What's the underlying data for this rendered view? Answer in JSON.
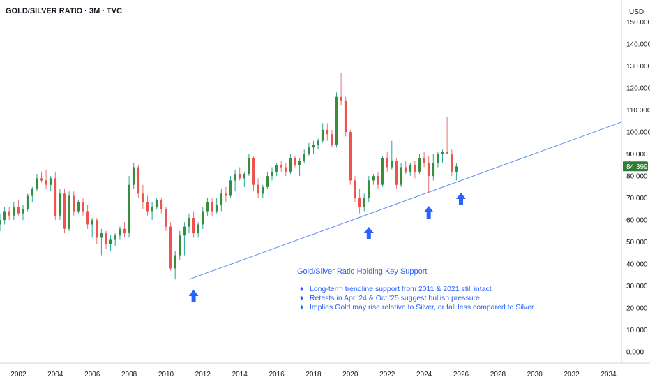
{
  "chart_data": {
    "type": "candlestick",
    "title": "GOLD/SILVER RATIO · 3M · TVC",
    "currency": "USD",
    "last_price": "84.399",
    "ylim": [
      -5,
      160
    ],
    "xlim": [
      2001.0,
      2034.7
    ],
    "y_ticks": [
      "0.000",
      "10.000",
      "20.000",
      "30.000",
      "40.000",
      "50.000",
      "60.000",
      "70.000",
      "80.000",
      "90.000",
      "100.000",
      "110.000",
      "120.000",
      "130.000",
      "140.000",
      "150.000"
    ],
    "y_tick_values": [
      0,
      10,
      20,
      30,
      40,
      50,
      60,
      70,
      80,
      90,
      100,
      110,
      120,
      130,
      140,
      150
    ],
    "x_ticks": [
      "2002",
      "2004",
      "2006",
      "2008",
      "2010",
      "2012",
      "2014",
      "2016",
      "2018",
      "2020",
      "2022",
      "2024",
      "2026",
      "2028",
      "2030",
      "2032",
      "2034"
    ],
    "x_tick_values": [
      2002,
      2004,
      2006,
      2008,
      2010,
      2012,
      2014,
      2016,
      2018,
      2020,
      2022,
      2024,
      2026,
      2028,
      2030,
      2032,
      2034
    ],
    "grid": false,
    "colors": {
      "up": "#26a69a",
      "up_body": "#388e3c",
      "down": "#ef5350",
      "trendline": "#5b8def",
      "arrow": "#2962ff",
      "price_tag": "#2e7d32",
      "text": "#131722",
      "axis": "#d1d4dc"
    },
    "candles": [
      {
        "t": 2001.0,
        "o": 58,
        "h": 63,
        "l": 55,
        "c": 60
      },
      {
        "t": 2001.25,
        "o": 60,
        "h": 66,
        "l": 58,
        "c": 64
      },
      {
        "t": 2001.5,
        "o": 64,
        "h": 66,
        "l": 60,
        "c": 62
      },
      {
        "t": 2001.75,
        "o": 62,
        "h": 68,
        "l": 60,
        "c": 66
      },
      {
        "t": 2002.0,
        "o": 66,
        "h": 69,
        "l": 62,
        "c": 63
      },
      {
        "t": 2002.25,
        "o": 63,
        "h": 67,
        "l": 60,
        "c": 65
      },
      {
        "t": 2002.5,
        "o": 65,
        "h": 72,
        "l": 64,
        "c": 71
      },
      {
        "t": 2002.75,
        "o": 71,
        "h": 75,
        "l": 68,
        "c": 74
      },
      {
        "t": 2003.0,
        "o": 74,
        "h": 81,
        "l": 73,
        "c": 79
      },
      {
        "t": 2003.25,
        "o": 79,
        "h": 82,
        "l": 77,
        "c": 78
      },
      {
        "t": 2003.5,
        "o": 78,
        "h": 83,
        "l": 74,
        "c": 76
      },
      {
        "t": 2003.75,
        "o": 76,
        "h": 80,
        "l": 73,
        "c": 79
      },
      {
        "t": 2004.0,
        "o": 79,
        "h": 82,
        "l": 60,
        "c": 62
      },
      {
        "t": 2004.25,
        "o": 62,
        "h": 74,
        "l": 60,
        "c": 72
      },
      {
        "t": 2004.5,
        "o": 72,
        "h": 74,
        "l": 54,
        "c": 56
      },
      {
        "t": 2004.75,
        "o": 56,
        "h": 73,
        "l": 55,
        "c": 71
      },
      {
        "t": 2005.0,
        "o": 71,
        "h": 73,
        "l": 62,
        "c": 64
      },
      {
        "t": 2005.25,
        "o": 64,
        "h": 69,
        "l": 63,
        "c": 68
      },
      {
        "t": 2005.5,
        "o": 68,
        "h": 70,
        "l": 62,
        "c": 64
      },
      {
        "t": 2005.75,
        "o": 64,
        "h": 67,
        "l": 56,
        "c": 58
      },
      {
        "t": 2006.0,
        "o": 58,
        "h": 61,
        "l": 52,
        "c": 60
      },
      {
        "t": 2006.25,
        "o": 60,
        "h": 61,
        "l": 49,
        "c": 52
      },
      {
        "t": 2006.5,
        "o": 52,
        "h": 56,
        "l": 44,
        "c": 54
      },
      {
        "t": 2006.75,
        "o": 54,
        "h": 55,
        "l": 47,
        "c": 49
      },
      {
        "t": 2007.0,
        "o": 49,
        "h": 53,
        "l": 46,
        "c": 51
      },
      {
        "t": 2007.25,
        "o": 51,
        "h": 54,
        "l": 48,
        "c": 53
      },
      {
        "t": 2007.5,
        "o": 53,
        "h": 57,
        "l": 51,
        "c": 56
      },
      {
        "t": 2007.75,
        "o": 56,
        "h": 59,
        "l": 52,
        "c": 54
      },
      {
        "t": 2008.0,
        "o": 54,
        "h": 80,
        "l": 52,
        "c": 76
      },
      {
        "t": 2008.25,
        "o": 76,
        "h": 86,
        "l": 74,
        "c": 84
      },
      {
        "t": 2008.5,
        "o": 84,
        "h": 85,
        "l": 70,
        "c": 72
      },
      {
        "t": 2008.75,
        "o": 72,
        "h": 76,
        "l": 65,
        "c": 68
      },
      {
        "t": 2009.0,
        "o": 68,
        "h": 71,
        "l": 62,
        "c": 64
      },
      {
        "t": 2009.25,
        "o": 64,
        "h": 68,
        "l": 60,
        "c": 66
      },
      {
        "t": 2009.5,
        "o": 66,
        "h": 70,
        "l": 65,
        "c": 69
      },
      {
        "t": 2009.75,
        "o": 69,
        "h": 70,
        "l": 63,
        "c": 65
      },
      {
        "t": 2010.0,
        "o": 65,
        "h": 66,
        "l": 55,
        "c": 57
      },
      {
        "t": 2010.25,
        "o": 57,
        "h": 59,
        "l": 37,
        "c": 38
      },
      {
        "t": 2010.5,
        "o": 38,
        "h": 46,
        "l": 33,
        "c": 44
      },
      {
        "t": 2010.75,
        "o": 44,
        "h": 55,
        "l": 42,
        "c": 53
      },
      {
        "t": 2011.0,
        "o": 53,
        "h": 59,
        "l": 44,
        "c": 57
      },
      {
        "t": 2011.25,
        "o": 57,
        "h": 63,
        "l": 54,
        "c": 61
      },
      {
        "t": 2011.5,
        "o": 61,
        "h": 64,
        "l": 52,
        "c": 54
      },
      {
        "t": 2011.75,
        "o": 54,
        "h": 59,
        "l": 52,
        "c": 58
      },
      {
        "t": 2012.0,
        "o": 58,
        "h": 66,
        "l": 56,
        "c": 64
      },
      {
        "t": 2012.25,
        "o": 64,
        "h": 70,
        "l": 62,
        "c": 68
      },
      {
        "t": 2012.5,
        "o": 68,
        "h": 70,
        "l": 62,
        "c": 64
      },
      {
        "t": 2012.75,
        "o": 64,
        "h": 70,
        "l": 63,
        "c": 67
      },
      {
        "t": 2013.0,
        "o": 67,
        "h": 74,
        "l": 64,
        "c": 72
      },
      {
        "t": 2013.25,
        "o": 72,
        "h": 75,
        "l": 68,
        "c": 71
      },
      {
        "t": 2013.5,
        "o": 71,
        "h": 80,
        "l": 70,
        "c": 78
      },
      {
        "t": 2013.75,
        "o": 78,
        "h": 83,
        "l": 73,
        "c": 81
      },
      {
        "t": 2014.0,
        "o": 81,
        "h": 84,
        "l": 78,
        "c": 79
      },
      {
        "t": 2014.25,
        "o": 79,
        "h": 82,
        "l": 75,
        "c": 81
      },
      {
        "t": 2014.5,
        "o": 81,
        "h": 90,
        "l": 80,
        "c": 88
      },
      {
        "t": 2014.75,
        "o": 88,
        "h": 89,
        "l": 73,
        "c": 76
      },
      {
        "t": 2015.0,
        "o": 76,
        "h": 79,
        "l": 70,
        "c": 72
      },
      {
        "t": 2015.25,
        "o": 72,
        "h": 76,
        "l": 70,
        "c": 75
      },
      {
        "t": 2015.5,
        "o": 75,
        "h": 82,
        "l": 74,
        "c": 80
      },
      {
        "t": 2015.75,
        "o": 80,
        "h": 84,
        "l": 78,
        "c": 82
      },
      {
        "t": 2016.0,
        "o": 82,
        "h": 86,
        "l": 80,
        "c": 85
      },
      {
        "t": 2016.25,
        "o": 85,
        "h": 87,
        "l": 82,
        "c": 84
      },
      {
        "t": 2016.5,
        "o": 84,
        "h": 86,
        "l": 80,
        "c": 82
      },
      {
        "t": 2016.75,
        "o": 82,
        "h": 90,
        "l": 81,
        "c": 88
      },
      {
        "t": 2017.0,
        "o": 88,
        "h": 89,
        "l": 84,
        "c": 85
      },
      {
        "t": 2017.25,
        "o": 85,
        "h": 88,
        "l": 80,
        "c": 87
      },
      {
        "t": 2017.5,
        "o": 87,
        "h": 92,
        "l": 86,
        "c": 90
      },
      {
        "t": 2017.75,
        "o": 90,
        "h": 95,
        "l": 89,
        "c": 93
      },
      {
        "t": 2018.0,
        "o": 93,
        "h": 96,
        "l": 90,
        "c": 94
      },
      {
        "t": 2018.25,
        "o": 94,
        "h": 97,
        "l": 92,
        "c": 96
      },
      {
        "t": 2018.5,
        "o": 96,
        "h": 104,
        "l": 95,
        "c": 101
      },
      {
        "t": 2018.75,
        "o": 101,
        "h": 104,
        "l": 96,
        "c": 99
      },
      {
        "t": 2019.0,
        "o": 99,
        "h": 101,
        "l": 93,
        "c": 94
      },
      {
        "t": 2019.25,
        "o": 94,
        "h": 118,
        "l": 93,
        "c": 116
      },
      {
        "t": 2019.5,
        "o": 116,
        "h": 127,
        "l": 112,
        "c": 114
      },
      {
        "t": 2019.75,
        "o": 114,
        "h": 116,
        "l": 98,
        "c": 100
      },
      {
        "t": 2020.0,
        "o": 100,
        "h": 101,
        "l": 76,
        "c": 78
      },
      {
        "t": 2020.25,
        "o": 78,
        "h": 80,
        "l": 68,
        "c": 70
      },
      {
        "t": 2020.5,
        "o": 70,
        "h": 74,
        "l": 63,
        "c": 66
      },
      {
        "t": 2020.75,
        "o": 66,
        "h": 72,
        "l": 64,
        "c": 70
      },
      {
        "t": 2021.0,
        "o": 70,
        "h": 80,
        "l": 68,
        "c": 78
      },
      {
        "t": 2021.25,
        "o": 78,
        "h": 81,
        "l": 76,
        "c": 80
      },
      {
        "t": 2021.5,
        "o": 80,
        "h": 82,
        "l": 74,
        "c": 76
      },
      {
        "t": 2021.75,
        "o": 76,
        "h": 89,
        "l": 75,
        "c": 88
      },
      {
        "t": 2022.0,
        "o": 88,
        "h": 91,
        "l": 82,
        "c": 84
      },
      {
        "t": 2022.25,
        "o": 84,
        "h": 96,
        "l": 83,
        "c": 87
      },
      {
        "t": 2022.5,
        "o": 87,
        "h": 88,
        "l": 74,
        "c": 76
      },
      {
        "t": 2022.75,
        "o": 76,
        "h": 86,
        "l": 75,
        "c": 84
      },
      {
        "t": 2023.0,
        "o": 84,
        "h": 87,
        "l": 81,
        "c": 82
      },
      {
        "t": 2023.25,
        "o": 82,
        "h": 86,
        "l": 80,
        "c": 85
      },
      {
        "t": 2023.5,
        "o": 85,
        "h": 87,
        "l": 79,
        "c": 82
      },
      {
        "t": 2023.75,
        "o": 82,
        "h": 90,
        "l": 81,
        "c": 88
      },
      {
        "t": 2024.0,
        "o": 88,
        "h": 91,
        "l": 84,
        "c": 86
      },
      {
        "t": 2024.25,
        "o": 86,
        "h": 89,
        "l": 72,
        "c": 80
      },
      {
        "t": 2024.5,
        "o": 80,
        "h": 90,
        "l": 78,
        "c": 86
      },
      {
        "t": 2024.75,
        "o": 86,
        "h": 91,
        "l": 84,
        "c": 90
      },
      {
        "t": 2025.0,
        "o": 90,
        "h": 92,
        "l": 86,
        "c": 91
      },
      {
        "t": 2025.25,
        "o": 91,
        "h": 107,
        "l": 90,
        "c": 90
      },
      {
        "t": 2025.5,
        "o": 90,
        "h": 92,
        "l": 80,
        "c": 82
      },
      {
        "t": 2025.75,
        "o": 82,
        "h": 86,
        "l": 78,
        "c": 84.4
      }
    ],
    "trendline": {
      "t1": 2011.25,
      "v1": 33,
      "t2": 2034.7,
      "v2": 104.5
    },
    "arrows": [
      2011.5,
      2021.0,
      2024.25,
      2026.0
    ],
    "annotation": {
      "title": "Gold/Silver Ratio Holding Key Support",
      "bullets": [
        "Long-term trendline support from 2011 & 2021 still intact",
        "Retests in Apr '24 & Oct '25 suggest bullish pressure",
        "Implies Gold may rise relative to Silver, or fall less compared to Silver"
      ]
    }
  }
}
